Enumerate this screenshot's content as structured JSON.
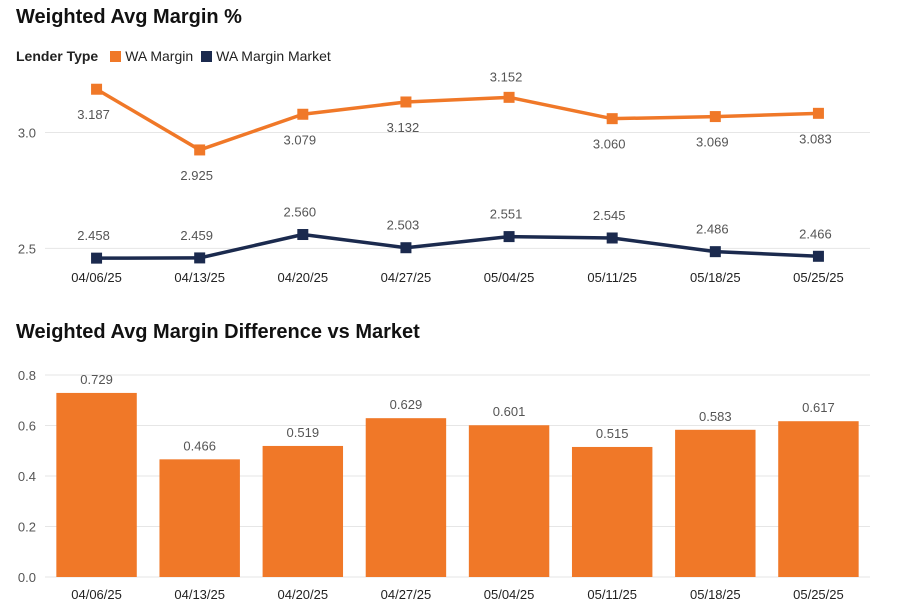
{
  "chart_data": [
    {
      "type": "line",
      "title": "Weighted Avg Margin %",
      "legend_title": "Lender Type",
      "legend_position": "top-left",
      "grid": true,
      "categories": [
        "04/06/25",
        "04/13/25",
        "04/20/25",
        "04/27/25",
        "05/04/25",
        "05/11/25",
        "05/18/25",
        "05/25/25"
      ],
      "yticks": [
        "3.0",
        "2.5"
      ],
      "ytick_values": [
        3.0,
        2.5
      ],
      "ylim": [
        2.45,
        3.27
      ],
      "series": [
        {
          "name": "WA Margin",
          "color": "#F07828",
          "values": [
            3.187,
            2.925,
            3.079,
            3.132,
            3.152,
            3.06,
            3.069,
            3.083
          ],
          "labels": [
            "3.187",
            "2.925",
            "3.079",
            "3.132",
            "3.152",
            "3.060",
            "3.069",
            "3.083"
          ]
        },
        {
          "name": "WA Margin Market",
          "color": "#1B2A4E",
          "values": [
            2.458,
            2.459,
            2.56,
            2.503,
            2.551,
            2.545,
            2.486,
            2.466
          ],
          "labels": [
            "2.458",
            "2.459",
            "2.560",
            "2.503",
            "2.551",
            "2.545",
            "2.486",
            "2.466"
          ]
        }
      ]
    },
    {
      "type": "bar",
      "title": "Weighted Avg Margin Difference vs Market",
      "grid": true,
      "color": "#F07828",
      "categories": [
        "04/06/25",
        "04/13/25",
        "04/20/25",
        "04/27/25",
        "05/04/25",
        "05/11/25",
        "05/18/25",
        "05/25/25"
      ],
      "values": [
        0.729,
        0.466,
        0.519,
        0.629,
        0.601,
        0.515,
        0.583,
        0.617
      ],
      "labels": [
        "0.729",
        "0.466",
        "0.519",
        "0.629",
        "0.601",
        "0.515",
        "0.583",
        "0.617"
      ],
      "yticks": [
        "0.8",
        "0.6",
        "0.4",
        "0.2",
        "0.0"
      ],
      "ytick_values": [
        0.8,
        0.6,
        0.4,
        0.2,
        0.0
      ],
      "ylim": [
        0,
        0.8
      ]
    }
  ]
}
